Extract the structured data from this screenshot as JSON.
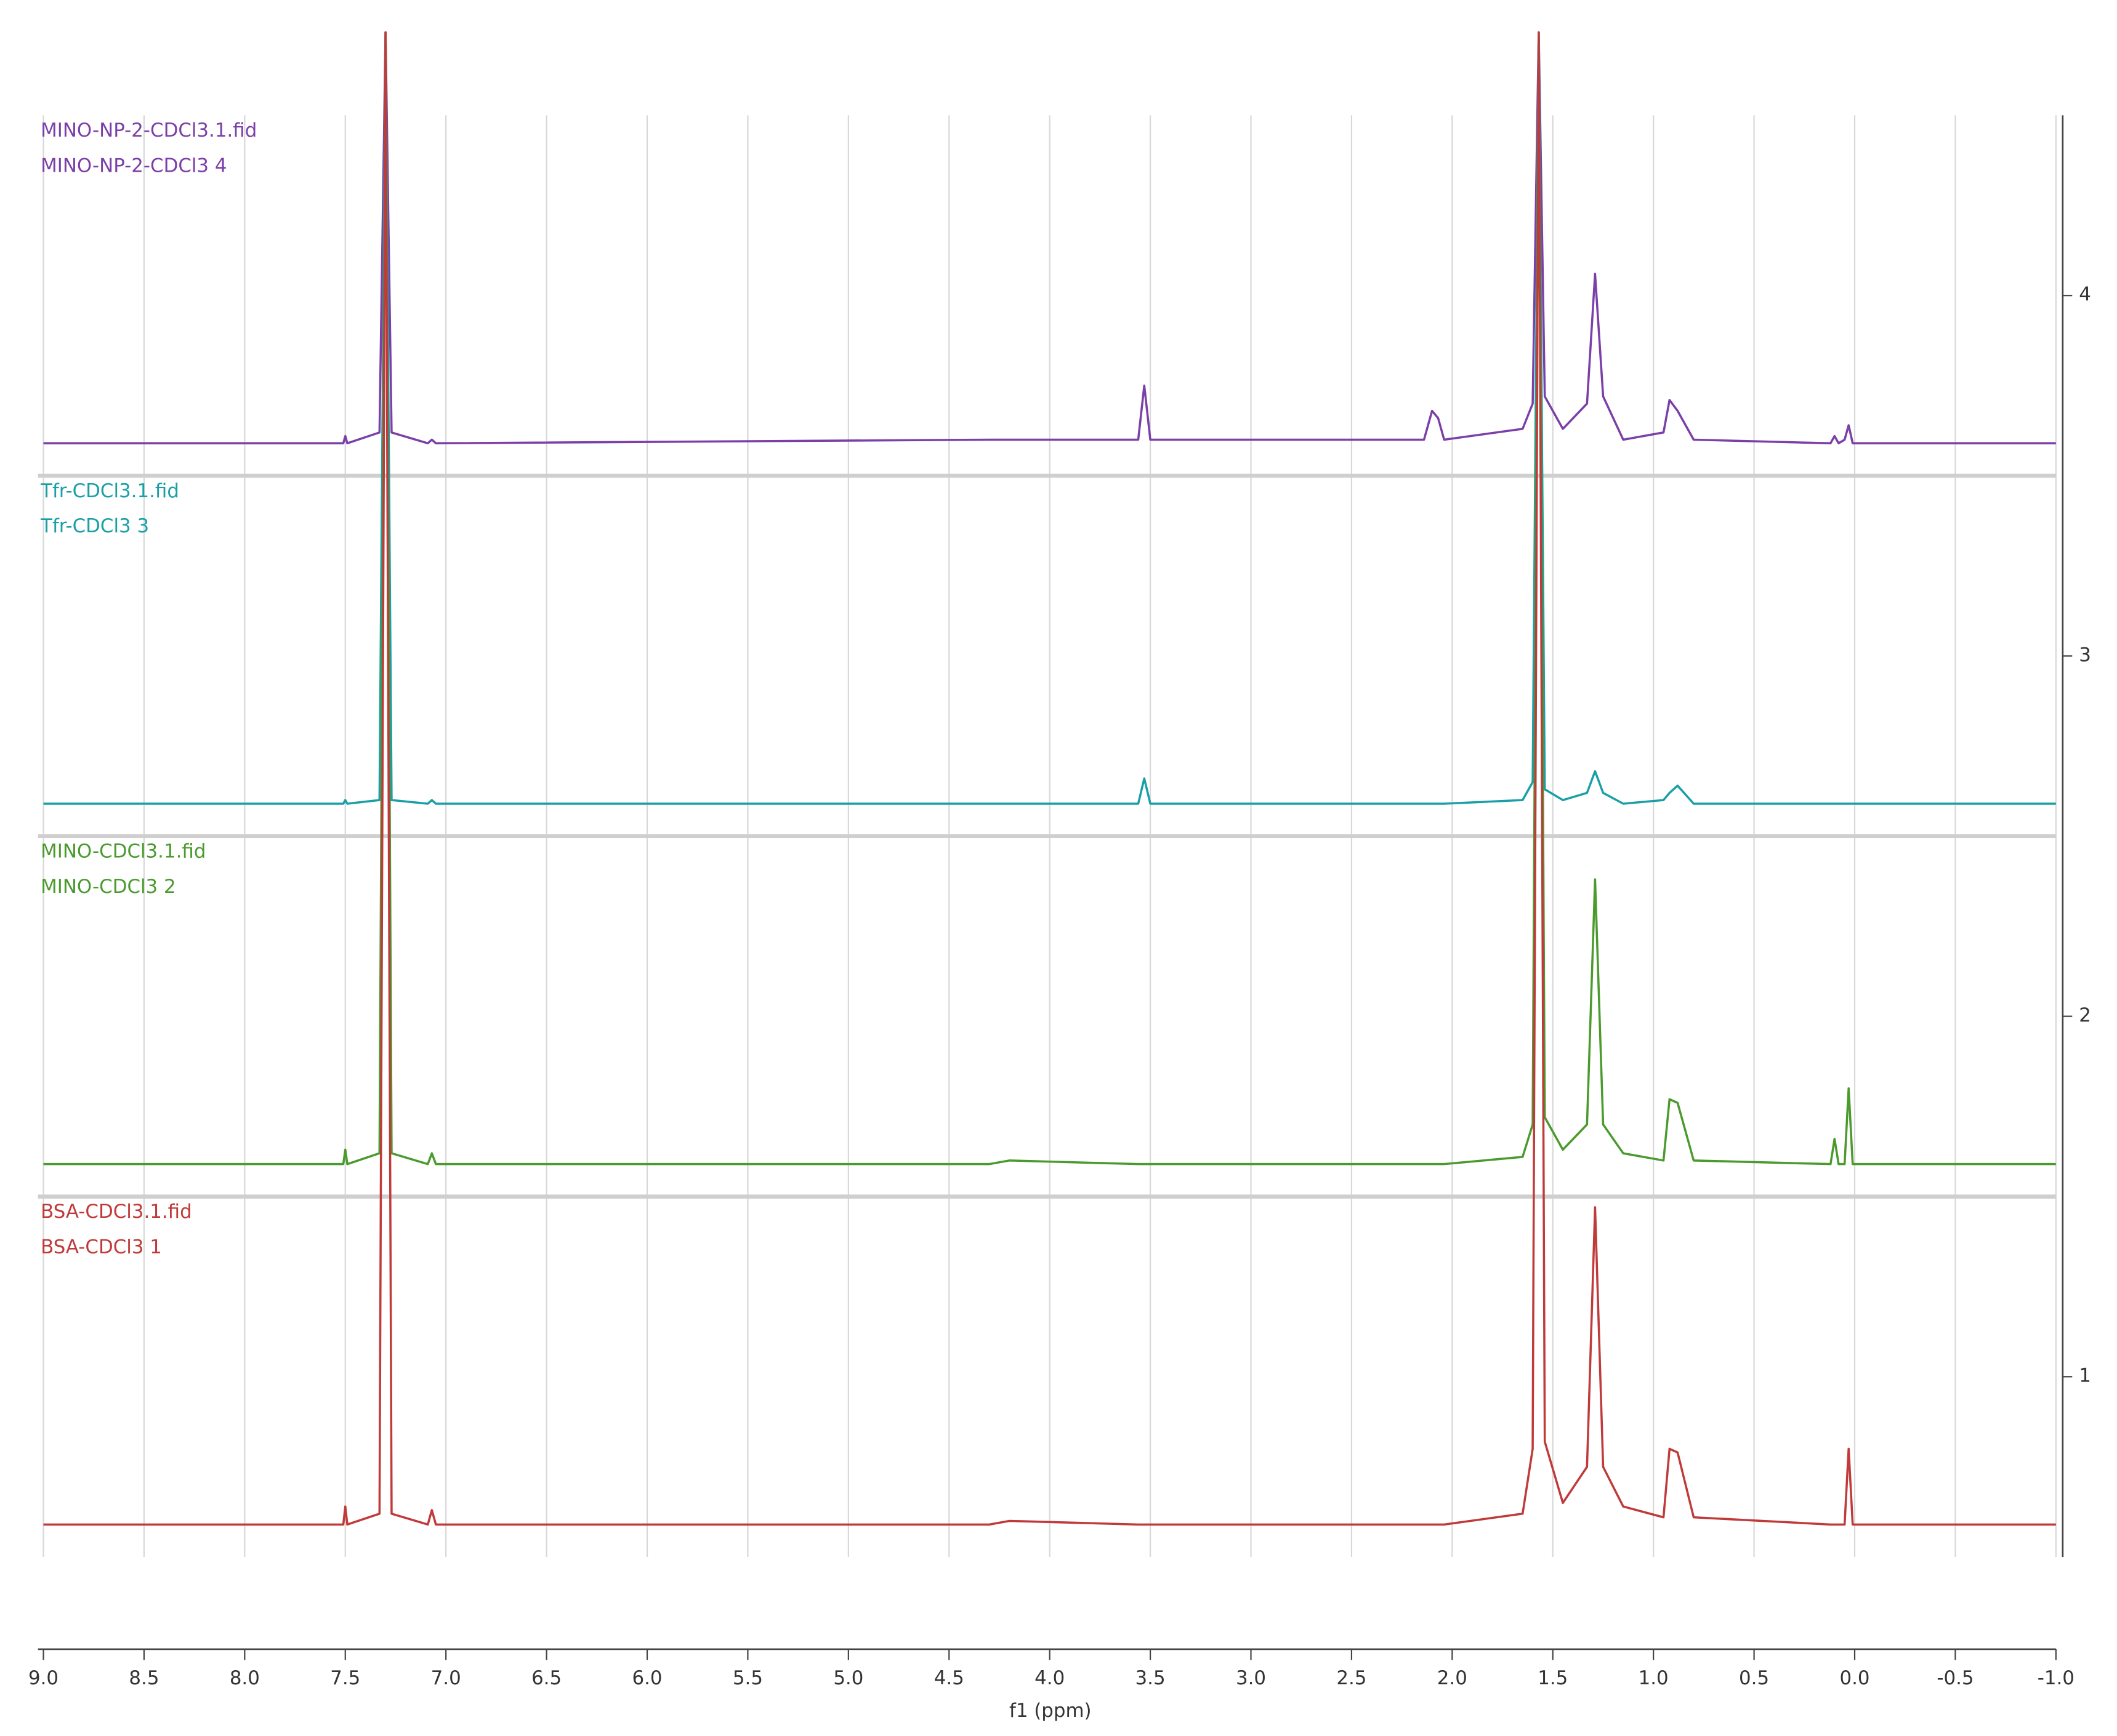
{
  "chart_data": {
    "type": "line",
    "xlabel": "f1 (ppm)",
    "x": [
      9.0,
      7.55,
      7.51,
      7.5,
      7.49,
      7.33,
      7.3,
      7.27,
      7.09,
      7.07,
      7.05,
      4.3,
      4.2,
      3.56,
      3.53,
      3.5,
      2.14,
      2.1,
      2.07,
      2.04,
      1.65,
      1.6,
      1.57,
      1.54,
      1.45,
      1.33,
      1.29,
      1.25,
      1.15,
      0.95,
      0.92,
      0.88,
      0.8,
      0.12,
      0.1,
      0.08,
      0.05,
      0.03,
      0.01,
      -1.0
    ],
    "series": [
      {
        "name": "MINO-NP-2-CDCl3.1.fid",
        "label": "MINO-NP-2-CDCl3 4",
        "color": "#7b3fa8",
        "values": [
          3.59,
          3.59,
          3.59,
          3.61,
          3.59,
          3.62,
          4.73,
          3.62,
          3.59,
          3.6,
          3.59,
          3.6,
          3.6,
          3.6,
          3.75,
          3.6,
          3.6,
          3.68,
          3.66,
          3.6,
          3.63,
          3.7,
          4.73,
          3.72,
          3.63,
          3.7,
          4.06,
          3.72,
          3.6,
          3.62,
          3.71,
          3.68,
          3.6,
          3.59,
          3.61,
          3.59,
          3.6,
          3.64,
          3.59,
          3.59
        ]
      },
      {
        "name": "Tfr-CDCl3.1.fid",
        "label": "Tfr-CDCl3 3",
        "color": "#1a9fa6",
        "values": [
          2.59,
          2.59,
          2.59,
          2.6,
          2.59,
          2.6,
          4.73,
          2.6,
          2.59,
          2.6,
          2.59,
          2.59,
          2.59,
          2.59,
          2.66,
          2.59,
          2.59,
          2.59,
          2.59,
          2.59,
          2.6,
          2.65,
          4.73,
          2.63,
          2.6,
          2.62,
          2.68,
          2.62,
          2.59,
          2.6,
          2.62,
          2.64,
          2.59,
          2.59,
          2.59,
          2.59,
          2.59,
          2.59,
          2.59,
          2.59
        ]
      },
      {
        "name": "MINO-CDCl3.1.fid",
        "label": "MINO-CDCl3 2",
        "color": "#4a9a2e",
        "values": [
          1.59,
          1.59,
          1.59,
          1.63,
          1.59,
          1.62,
          4.73,
          1.62,
          1.59,
          1.62,
          1.59,
          1.59,
          1.6,
          1.59,
          1.59,
          1.59,
          1.59,
          1.59,
          1.59,
          1.59,
          1.61,
          1.7,
          4.73,
          1.72,
          1.63,
          1.7,
          2.38,
          1.7,
          1.62,
          1.6,
          1.77,
          1.76,
          1.6,
          1.59,
          1.66,
          1.59,
          1.59,
          1.8,
          1.59,
          1.59
        ]
      },
      {
        "name": "BSA-CDCl3.1.fid",
        "label": "BSA-CDCl3 1",
        "color": "#c03a3a",
        "values": [
          0.59,
          0.59,
          0.59,
          0.64,
          0.59,
          0.62,
          4.73,
          0.62,
          0.59,
          0.63,
          0.59,
          0.59,
          0.6,
          0.59,
          0.59,
          0.59,
          0.59,
          0.59,
          0.59,
          0.59,
          0.62,
          0.8,
          4.73,
          0.82,
          0.65,
          0.75,
          1.47,
          0.75,
          0.64,
          0.61,
          0.8,
          0.79,
          0.61,
          0.59,
          0.59,
          0.59,
          0.59,
          0.8,
          0.59,
          0.59
        ]
      }
    ],
    "xlim": [
      9.0,
      -1.0
    ],
    "xticks": [
      {
        "value": 9,
        "label": "9.0"
      },
      8.5,
      {
        "value": 8,
        "label": "8.0"
      },
      7.5,
      {
        "value": 7,
        "label": "7.0"
      },
      6.5,
      {
        "value": 6,
        "label": "6.0"
      },
      5.5,
      {
        "value": 5,
        "label": "5.0"
      },
      4.5,
      {
        "value": 4,
        "label": "4.0"
      },
      3.5,
      {
        "value": 3,
        "label": "3.0"
      },
      2.5,
      {
        "value": 2,
        "label": "2.0"
      },
      1.5,
      {
        "value": 1,
        "label": "1.0"
      },
      0.5,
      {
        "value": 0,
        "label": "0.0"
      },
      -0.5,
      {
        "value": -1,
        "label": "-1.0"
      }
    ],
    "ylim": [
      0.5,
      4.5
    ],
    "yticks": [
      1,
      2,
      3,
      4
    ],
    "grid": true
  }
}
